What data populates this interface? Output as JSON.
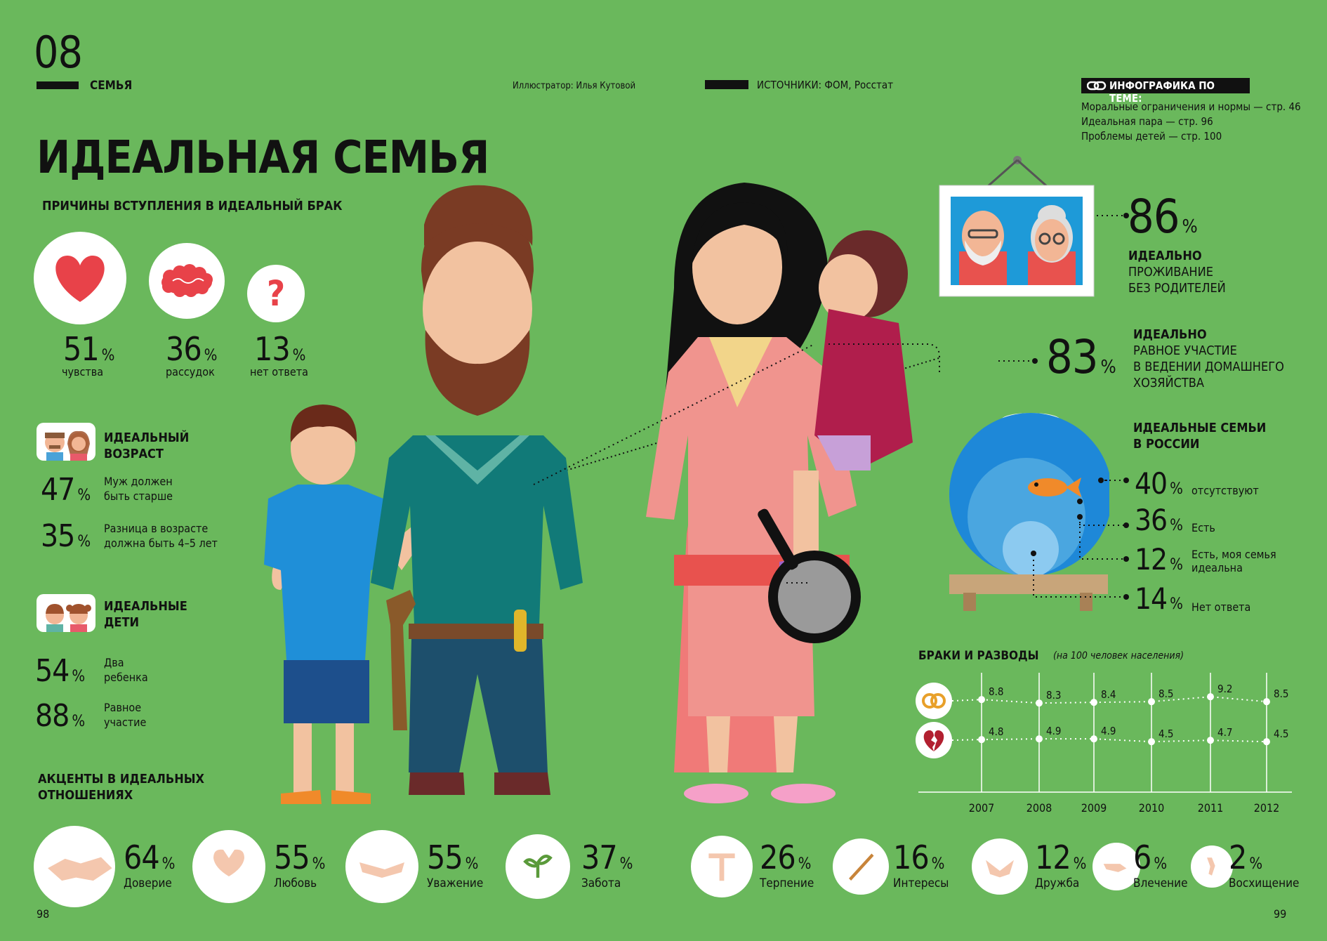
{
  "header": {
    "section_number": "08",
    "section_name": "СЕМЬЯ",
    "illustrator": "Иллюстратор: Илья Кутовой",
    "sources": "ИСТОЧНИКИ: ФОМ, Росстат",
    "related_title": "ИНФОГРАФИКА ПО ТЕМЕ:",
    "related_items": [
      "Моральные ограничения и нормы — стр. 46",
      "Идеальная пара — стр. 96",
      "Проблемы детей — стр. 100"
    ]
  },
  "title": "ИДЕАЛЬНАЯ СЕМЬЯ",
  "reasons": {
    "heading": "ПРИЧИНЫ ВСТУПЛЕНИЯ В ИДЕАЛЬНЫЙ БРАК",
    "items": [
      {
        "value": "51",
        "unit": "%",
        "label": "чувства",
        "icon": "heart-icon"
      },
      {
        "value": "36",
        "unit": "%",
        "label": "рассудок",
        "icon": "brain-icon"
      },
      {
        "value": "13",
        "unit": "%",
        "label": "нет ответа",
        "icon": "question-icon"
      }
    ]
  },
  "age": {
    "heading": "ИДЕАЛЬНЫЙ\nВОЗРАСТ",
    "items": [
      {
        "value": "47",
        "unit": "%",
        "label": "Муж должен\nбыть старше"
      },
      {
        "value": "35",
        "unit": "%",
        "label": "Разница в возрасте\nдолжна быть 4–5 лет"
      }
    ]
  },
  "children": {
    "heading": "ИДЕАЛЬНЫЕ\nДЕТИ",
    "items": [
      {
        "value": "54",
        "unit": "%",
        "label": "Два\nребенка"
      },
      {
        "value": "88",
        "unit": "%",
        "label": "Равное\nучастие"
      }
    ]
  },
  "parents": {
    "value": "86",
    "unit": "%",
    "heading": "ИДЕАЛЬНО",
    "label": "ПРОЖИВАНИЕ\nБЕЗ РОДИТЕЛЕЙ"
  },
  "household": {
    "value": "83",
    "unit": "%",
    "heading": "ИДЕАЛЬНО",
    "label": "РАВНОЕ УЧАСТИЕ\nВ ВЕДЕНИИ ДОМАШНЕГО\nХОЗЯЙСТВА"
  },
  "russia": {
    "heading": "ИДЕАЛЬНЫЕ СЕМЬИ\nВ РОССИИ",
    "items": [
      {
        "value": "40",
        "unit": "%",
        "label": "отсутствуют"
      },
      {
        "value": "36",
        "unit": "%",
        "label": "Есть"
      },
      {
        "value": "12",
        "unit": "%",
        "label": "Есть, моя семья\nидеальна"
      },
      {
        "value": "14",
        "unit": "%",
        "label": "Нет ответа"
      }
    ]
  },
  "chart_data": {
    "type": "line",
    "title": "БРАКИ И РАЗВОДЫ",
    "subtitle": "(на 100 человек населения)",
    "x": [
      "2007",
      "2008",
      "2009",
      "2010",
      "2011",
      "2012"
    ],
    "series": [
      {
        "name": "",
        "icon": "rings-icon",
        "values": [
          8.8,
          8.3,
          8.4,
          8.5,
          9.2,
          8.5
        ],
        "labels": [
          "8.8",
          "8.3",
          "8.4",
          "8.5",
          "9.2",
          "8.5"
        ]
      },
      {
        "name": "",
        "icon": "broken-heart-icon",
        "values": [
          4.8,
          4.9,
          4.9,
          4.5,
          4.7,
          4.5
        ],
        "labels": [
          "4.8",
          "4.9",
          "4.9",
          "4.5",
          "4.7",
          "4.5"
        ]
      }
    ]
  },
  "accents": {
    "heading": "АКЦЕНТЫ В ИДЕАЛЬНЫХ\nОТНОШЕНИЯХ",
    "items": [
      {
        "value": "64",
        "unit": "%",
        "label": "Доверие",
        "icon": "handshake-icon"
      },
      {
        "value": "55",
        "unit": "%",
        "label": "Любовь",
        "icon": "heart-hands-icon"
      },
      {
        "value": "55",
        "unit": "%",
        "label": "Уважение",
        "icon": "open-hands-icon"
      },
      {
        "value": "37",
        "unit": "%",
        "label": "Забота",
        "icon": "sprout-icon"
      },
      {
        "value": "26",
        "unit": "%",
        "label": "Терпение",
        "icon": "patience-hands-icon"
      },
      {
        "value": "16",
        "unit": "%",
        "label": "Интересы",
        "icon": "paintbrush-icon"
      },
      {
        "value": "12",
        "unit": "%",
        "label": "Дружба",
        "icon": "friendship-hands-icon"
      },
      {
        "value": "6",
        "unit": "%",
        "label": "Влечение",
        "icon": "reaching-hand-icon"
      },
      {
        "value": "2",
        "unit": "%",
        "label": "Восхищение",
        "icon": "admiration-hand-icon"
      }
    ]
  },
  "page_numbers": {
    "left": "98",
    "right": "99"
  },
  "colors": {
    "background": "#6ab85c",
    "heart": "#e84249",
    "brain": "#e84249",
    "question": "#e84249",
    "text": "#111111"
  }
}
